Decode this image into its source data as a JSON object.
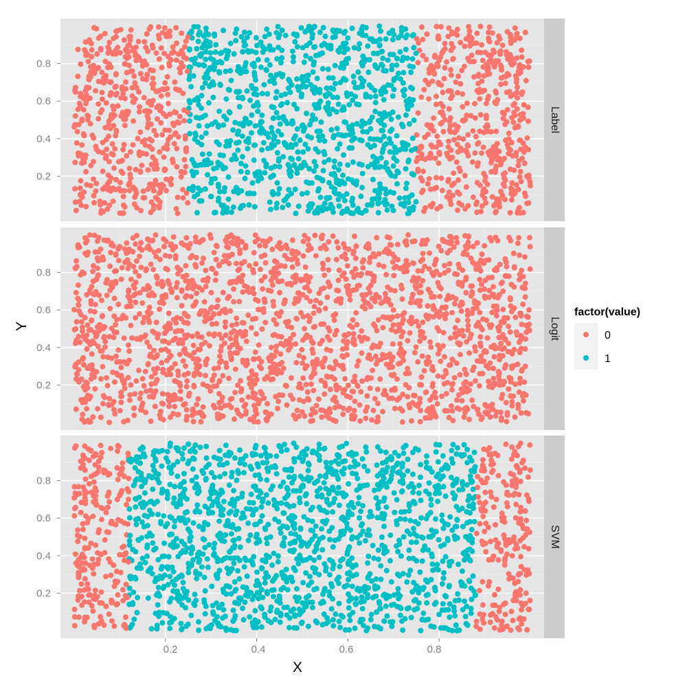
{
  "chart_data": {
    "type": "scatter",
    "xlabel": "X",
    "ylabel": "Y",
    "xlim": [
      -0.03,
      1.03
    ],
    "ylim": [
      -0.04,
      1.04
    ],
    "x_ticks": [
      0.2,
      0.4,
      0.6,
      0.8
    ],
    "y_ticks": [
      0.2,
      0.4,
      0.6,
      0.8
    ],
    "grid": true,
    "facet_by": "row",
    "legend": {
      "title": "factor(value)",
      "position": "right",
      "entries": [
        {
          "label": "0",
          "color": "#F8766D"
        },
        {
          "label": "1",
          "color": "#00BFC4"
        }
      ]
    },
    "panels": [
      {
        "name": "Label",
        "regions": [
          {
            "x_range": [
              0.0,
              0.25
            ],
            "value": "0"
          },
          {
            "x_range": [
              0.25,
              0.75
            ],
            "value": "1"
          },
          {
            "x_range": [
              0.75,
              1.0
            ],
            "value": "0"
          }
        ]
      },
      {
        "name": "Logit",
        "regions": [
          {
            "x_range": [
              0.0,
              1.0
            ],
            "value": "0"
          }
        ]
      },
      {
        "name": "SVM",
        "regions": [
          {
            "x_range": [
              0.0,
              0.12
            ],
            "value": "0"
          },
          {
            "x_range": [
              0.12,
              0.88
            ],
            "value": "1"
          },
          {
            "x_range": [
              0.88,
              1.0
            ],
            "value": "0"
          }
        ]
      }
    ]
  }
}
